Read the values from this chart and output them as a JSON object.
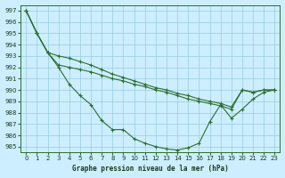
{
  "title": "Graphe pression niveau de la mer (hPa)",
  "background_color": "#cceeff",
  "grid_color": "#99ccdd",
  "line_color": "#2d6e2d",
  "xlim": [
    -0.5,
    23.5
  ],
  "ylim": [
    984.5,
    997.5
  ],
  "yticks": [
    985,
    986,
    987,
    988,
    989,
    990,
    991,
    992,
    993,
    994,
    995,
    996,
    997
  ],
  "xticks": [
    0,
    1,
    2,
    3,
    4,
    5,
    6,
    7,
    8,
    9,
    10,
    11,
    12,
    13,
    14,
    15,
    16,
    17,
    18,
    19,
    20,
    21,
    22,
    23
  ],
  "series": [
    [
      997.0,
      995.0,
      993.3,
      992.0,
      990.5,
      989.5,
      988.7,
      987.3,
      986.5,
      986.5,
      985.7,
      985.3,
      985.0,
      984.8,
      984.7,
      984.9,
      985.3,
      987.2,
      988.7,
      987.5,
      988.3,
      989.2,
      989.8,
      990.0
    ],
    [
      997.0,
      995.0,
      993.3,
      993.0,
      992.8,
      992.5,
      992.2,
      991.8,
      991.4,
      991.1,
      990.8,
      990.5,
      990.2,
      990.0,
      989.7,
      989.5,
      989.2,
      989.0,
      988.8,
      988.5,
      990.0,
      989.8,
      990.0,
      990.0
    ],
    [
      997.0,
      995.0,
      993.3,
      992.2,
      992.0,
      991.8,
      991.6,
      991.3,
      991.0,
      990.8,
      990.5,
      990.3,
      990.0,
      989.8,
      989.5,
      989.2,
      989.0,
      988.8,
      988.6,
      988.3,
      990.0,
      989.8,
      990.0,
      990.0
    ]
  ]
}
